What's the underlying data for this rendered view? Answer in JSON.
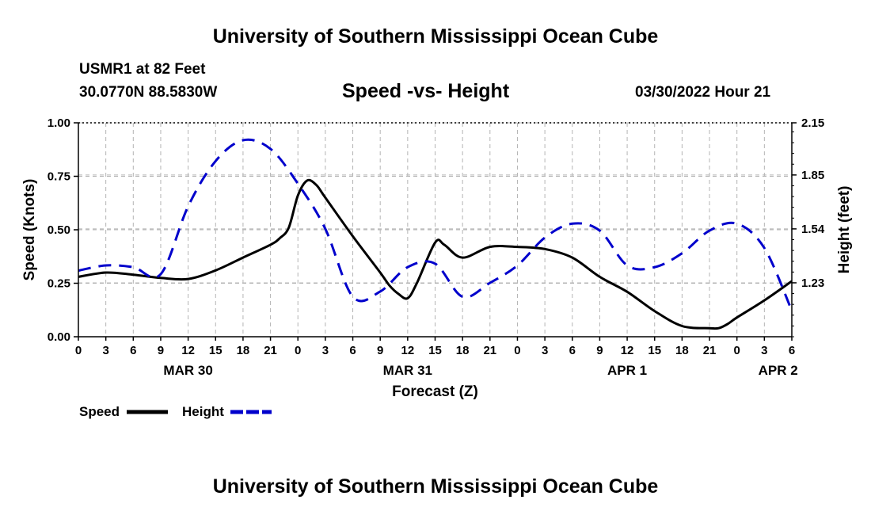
{
  "header": {
    "title": "University of Southern Mississippi Ocean Cube",
    "station": "USMR1 at 82 Feet",
    "coordinates": "30.0770N  88.5830W",
    "chart_title": "Speed -vs- Height",
    "run_time": "03/30/2022 Hour 21"
  },
  "footer": {
    "title": "University of Southern Mississippi Ocean Cube"
  },
  "chart_data": {
    "type": "line",
    "title": "Speed -vs- Height",
    "xlabel": "Forecast (Z)",
    "ylabel_left": "Speed (Knots)",
    "ylabel_right": "Height (feet)",
    "x_range": [
      0,
      78
    ],
    "x_unit": "hours since MAR 30 00Z",
    "x_ticks": [
      0,
      3,
      6,
      9,
      12,
      15,
      18,
      21,
      24,
      27,
      30,
      33,
      36,
      39,
      42,
      45,
      48,
      51,
      54,
      57,
      60,
      63,
      66,
      69,
      72,
      75,
      78
    ],
    "x_tick_labels": [
      "0",
      "3",
      "6",
      "9",
      "12",
      "15",
      "18",
      "21",
      "0",
      "3",
      "6",
      "9",
      "12",
      "15",
      "18",
      "21",
      "0",
      "3",
      "6",
      "9",
      "12",
      "15",
      "18",
      "21",
      "0",
      "3",
      "6"
    ],
    "date_labels": [
      {
        "x": 12,
        "label": "MAR 30"
      },
      {
        "x": 36,
        "label": "MAR 31"
      },
      {
        "x": 60,
        "label": "APR 1"
      },
      {
        "x": 76.5,
        "label": "APR 2"
      }
    ],
    "ylim_left": [
      0,
      1
    ],
    "yticks_left": [
      0,
      0.25,
      0.5,
      0.75,
      1.0
    ],
    "ytick_labels_left": [
      "0.00",
      "0.25",
      "0.50",
      "0.75",
      "1.00"
    ],
    "ylim_right": [
      0.92,
      2.15
    ],
    "yticks_right": [
      1.23,
      1.54,
      1.85,
      2.15
    ],
    "ytick_labels_right": [
      "1.23",
      "1.54",
      "1.85",
      "2.15"
    ],
    "grid": true,
    "legend_position": "bottom-left",
    "series": [
      {
        "name": "Speed",
        "axis": "left",
        "color": "#000000",
        "style": "solid",
        "x": [
          0,
          3,
          6,
          9,
          12,
          15,
          18,
          21,
          22,
          23,
          24,
          25,
          26,
          27,
          30,
          33,
          34,
          35,
          36,
          37,
          39,
          40,
          42,
          45,
          48,
          51,
          54,
          57,
          60,
          63,
          66,
          69,
          70,
          71,
          72,
          75,
          78
        ],
        "values": [
          0.28,
          0.3,
          0.29,
          0.275,
          0.27,
          0.31,
          0.37,
          0.43,
          0.46,
          0.51,
          0.66,
          0.73,
          0.71,
          0.65,
          0.47,
          0.3,
          0.24,
          0.2,
          0.18,
          0.25,
          0.44,
          0.43,
          0.37,
          0.42,
          0.42,
          0.41,
          0.37,
          0.28,
          0.21,
          0.12,
          0.05,
          0.04,
          0.04,
          0.06,
          0.09,
          0.17,
          0.26
        ]
      },
      {
        "name": "Height",
        "axis": "right",
        "color": "#0000cc",
        "style": "dashed",
        "x": [
          0,
          3,
          6,
          9,
          12,
          15,
          18,
          21,
          24,
          27,
          30,
          33,
          36,
          39,
          42,
          45,
          48,
          51,
          54,
          57,
          60,
          63,
          66,
          69,
          72,
          75,
          78
        ],
        "values": [
          1.3,
          1.33,
          1.32,
          1.28,
          1.67,
          1.93,
          2.05,
          2.0,
          1.8,
          1.54,
          1.15,
          1.18,
          1.32,
          1.34,
          1.15,
          1.23,
          1.33,
          1.49,
          1.57,
          1.53,
          1.33,
          1.32,
          1.4,
          1.53,
          1.57,
          1.43,
          1.07
        ]
      }
    ],
    "legend": [
      {
        "label": "Speed",
        "color": "#000000",
        "style": "solid"
      },
      {
        "label": "Height",
        "color": "#0000cc",
        "style": "dashed"
      }
    ]
  }
}
